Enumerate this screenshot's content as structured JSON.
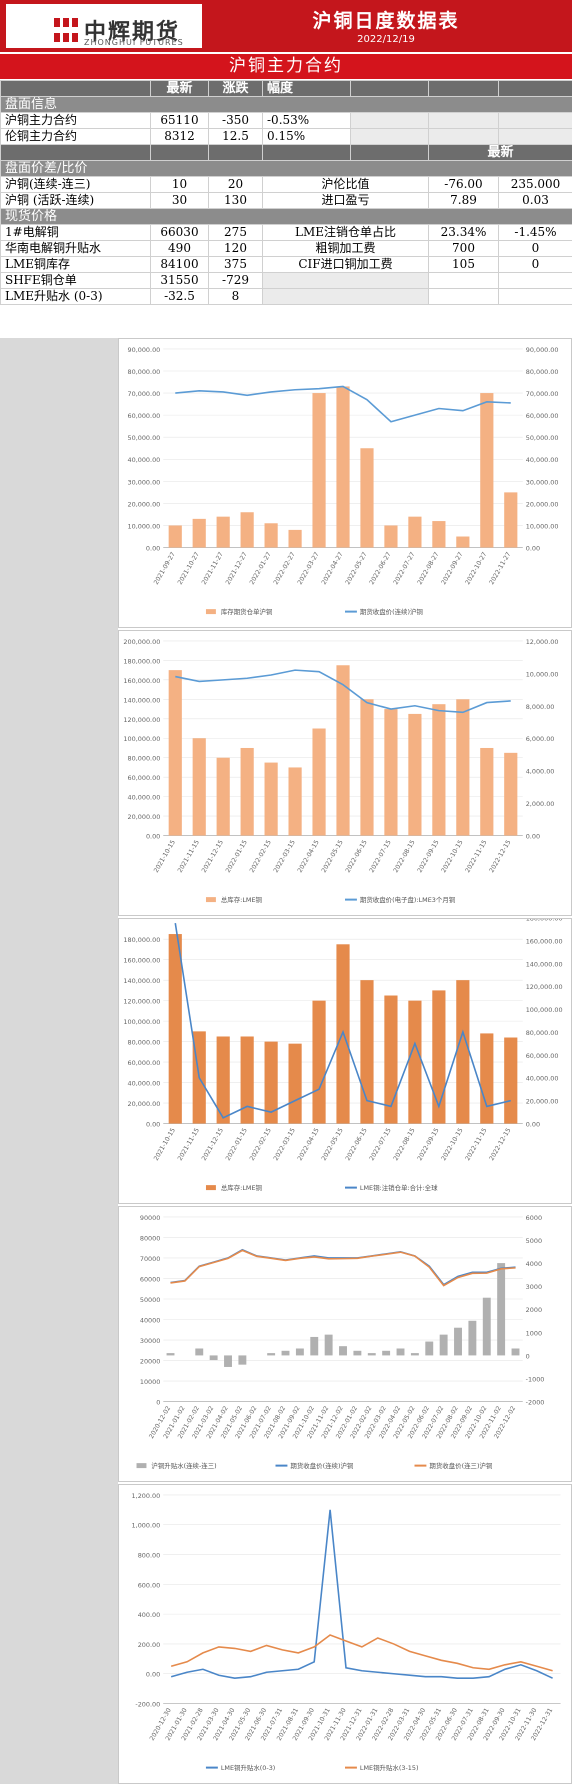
{
  "header": {
    "logo_cn": "中辉期货",
    "logo_en": "ZHONGHUI FUTURES",
    "title": "沪铜日度数据表",
    "date": "2022/12/19",
    "brand_color": "#c4161c"
  },
  "section_main": "沪铜主力合约",
  "table1": {
    "headers": [
      "最新",
      "涨跌",
      "幅度"
    ],
    "group": "盘面信息",
    "rows": [
      {
        "name": "沪铜主力合约",
        "latest": "65110",
        "change": "-350",
        "pct": "-0.53%"
      },
      {
        "name": "伦铜主力合约",
        "latest": "8312",
        "change": "12.5",
        "pct": "0.15%"
      }
    ],
    "right_header": "最新"
  },
  "table2": {
    "group": "盘面价差/比价",
    "rows": [
      {
        "name": "沪铜(连续-连三)",
        "latest": "10",
        "change": "20",
        "rname": "沪伦比值",
        "r1": "-76.00",
        "r2": "235.000"
      },
      {
        "name": "沪铜 (活跃-连续)",
        "latest": "30",
        "change": "130",
        "rname": "进口盈亏",
        "r1": "7.89",
        "r2": "0.03"
      }
    ]
  },
  "table3": {
    "group": "现货价格",
    "rows": [
      {
        "name": "1#电解铜",
        "latest": "66030",
        "change": "275",
        "rname": "LME注销仓单占比",
        "r1": "23.34%",
        "r2": "-1.45%"
      },
      {
        "name": "华南电解铜升贴水",
        "latest": "490",
        "change": "120",
        "rname": "粗铜加工费",
        "r1": "700",
        "r2": "0"
      },
      {
        "name": "LME铜库存",
        "latest": "84100",
        "change": "375",
        "rname": "CIF进口铜加工费",
        "r1": "105",
        "r2": "0"
      },
      {
        "name": "SHFE铜仓单",
        "latest": "31550",
        "change": "-729",
        "rname": "",
        "r1": "",
        "r2": ""
      },
      {
        "name": "LME升贴水 (0-3)",
        "latest": "-32.5",
        "change": "8",
        "rname": "",
        "r1": "",
        "r2": ""
      }
    ]
  },
  "chart_data": [
    {
      "type": "bar+line",
      "x": [
        "2021-09-27",
        "2021-10-27",
        "2021-11-27",
        "2021-12-27",
        "2022-01-27",
        "2022-02-27",
        "2022-03-27",
        "2022-04-27",
        "2022-05-27",
        "2022-06-27",
        "2022-07-27",
        "2022-08-27",
        "2022-09-27",
        "2022-10-27",
        "2022-11-27"
      ],
      "yticks_left": [
        "0.00",
        "10,000.00",
        "20,000.00",
        "30,000.00",
        "40,000.00",
        "50,000.00",
        "60,000.00",
        "70,000.00",
        "80,000.00",
        "90,000.00"
      ],
      "yticks_right": [
        "0.00",
        "10,000.00",
        "20,000.00",
        "30,000.00",
        "40,000.00",
        "50,000.00",
        "60,000.00",
        "70,000.00",
        "80,000.00",
        "90,000.00"
      ],
      "ylim": [
        0,
        90000
      ],
      "y2lim": [
        0,
        90000
      ],
      "series": [
        {
          "name": "库存期货仓单沪铜",
          "kind": "bar",
          "axis": "left",
          "color": "#f4b183",
          "values": [
            10000,
            13000,
            14000,
            16000,
            11000,
            8000,
            70000,
            73000,
            45000,
            10000,
            14000,
            12000,
            5000,
            70000,
            25000
          ]
        },
        {
          "name": "期货收盘价(连续)沪铜",
          "kind": "line",
          "axis": "left",
          "color": "#5b9bd5",
          "values": [
            70000,
            71000,
            70500,
            69000,
            70500,
            71500,
            72000,
            73000,
            67000,
            57000,
            60000,
            63000,
            62000,
            66000,
            65500
          ]
        }
      ]
    },
    {
      "type": "bar+line",
      "x": [
        "2021-10-15",
        "2021-11-15",
        "2021-12-15",
        "2022-01-15",
        "2022-02-15",
        "2022-03-15",
        "2022-04-15",
        "2022-05-15",
        "2022-06-15",
        "2022-07-15",
        "2022-08-15",
        "2022-09-15",
        "2022-10-15",
        "2022-11-15",
        "2022-12-15"
      ],
      "yticks_left": [
        "0.00",
        "20,000.00",
        "40,000.00",
        "60,000.00",
        "80,000.00",
        "100,000.00",
        "120,000.00",
        "140,000.00",
        "160,000.00",
        "180,000.00",
        "200,000.00"
      ],
      "yticks_right": [
        "0.00",
        "2,000.00",
        "4,000.00",
        "6,000.00",
        "8,000.00",
        "10,000.00",
        "12,000.00"
      ],
      "ylim": [
        0,
        200000
      ],
      "y2lim": [
        0,
        12000
      ],
      "series": [
        {
          "name": "总库存:LME铜",
          "kind": "bar",
          "axis": "left",
          "color": "#f4b183",
          "values": [
            170000,
            100000,
            80000,
            90000,
            75000,
            70000,
            110000,
            175000,
            140000,
            130000,
            125000,
            135000,
            140000,
            90000,
            85000
          ]
        },
        {
          "name": "期货收盘价(电子盘):LME3个月铜",
          "kind": "line",
          "axis": "right",
          "color": "#5b9bd5",
          "values": [
            9800,
            9500,
            9600,
            9700,
            9900,
            10200,
            10100,
            9300,
            8200,
            7800,
            8000,
            7700,
            7600,
            8200,
            8300
          ]
        }
      ]
    },
    {
      "type": "bar+line",
      "x": [
        "2021-10-15",
        "2021-11-15",
        "2021-12-15",
        "2022-01-15",
        "2022-02-15",
        "2022-03-15",
        "2022-04-15",
        "2022-05-15",
        "2022-06-15",
        "2022-07-15",
        "2022-08-15",
        "2022-09-15",
        "2022-10-15",
        "2022-11-15",
        "2022-12-15"
      ],
      "yticks_left": [
        "0.00",
        "20,000.00",
        "40,000.00",
        "60,000.00",
        "80,000.00",
        "100,000.00",
        "120,000.00",
        "140,000.00",
        "160,000.00",
        "180,000.00"
      ],
      "yticks_right": [
        "0.00",
        "20,000.00",
        "40,000.00",
        "60,000.00",
        "80,000.00",
        "100,000.00",
        "120,000.00",
        "140,000.00",
        "160,000.00",
        "180,000.00"
      ],
      "ylim": [
        0,
        190000
      ],
      "y2lim": [
        0,
        170000
      ],
      "series": [
        {
          "name": "总库存:LME铜",
          "kind": "bar",
          "axis": "left",
          "color": "#e58a4b",
          "values": [
            185000,
            90000,
            85000,
            85000,
            80000,
            78000,
            120000,
            175000,
            140000,
            125000,
            120000,
            130000,
            140000,
            88000,
            84000
          ]
        },
        {
          "name": "LME铜:注销仓单:合计:全球",
          "kind": "line",
          "axis": "right",
          "color": "#4a86c8",
          "values": [
            175000,
            40000,
            5000,
            15000,
            10000,
            20000,
            30000,
            80000,
            20000,
            15000,
            70000,
            15000,
            80000,
            15000,
            20000
          ]
        }
      ]
    },
    {
      "type": "bar+line",
      "x": [
        "2020-12-02",
        "2021-01-02",
        "2021-02-02",
        "2021-03-02",
        "2021-04-02",
        "2021-05-02",
        "2021-06-02",
        "2021-07-02",
        "2021-08-02",
        "2021-09-02",
        "2021-10-02",
        "2021-11-02",
        "2021-12-02",
        "2022-01-02",
        "2022-02-02",
        "2022-03-02",
        "2022-04-02",
        "2022-05-02",
        "2022-06-02",
        "2022-07-02",
        "2022-08-02",
        "2022-09-02",
        "2022-10-02",
        "2022-11-02",
        "2022-12-02"
      ],
      "yticks_left": [
        "0",
        "10000",
        "20000",
        "30000",
        "40000",
        "50000",
        "60000",
        "70000",
        "80000",
        "90000"
      ],
      "yticks_right": [
        "-2000",
        "-1000",
        "0",
        "1000",
        "2000",
        "3000",
        "4000",
        "5000",
        "6000"
      ],
      "ylim": [
        0,
        90000
      ],
      "y2lim": [
        -2000,
        6000
      ],
      "series": [
        {
          "name": "沪铜升贴水(连续-连三)",
          "kind": "bar",
          "axis": "right",
          "color": "#b0b0b0",
          "values": [
            100,
            0,
            300,
            -200,
            -500,
            -400,
            0,
            100,
            200,
            300,
            800,
            900,
            400,
            200,
            100,
            200,
            300,
            100,
            600,
            900,
            1200,
            1500,
            2500,
            4000,
            300
          ]
        },
        {
          "name": "期货收盘价(连续)沪铜",
          "kind": "line",
          "axis": "left",
          "color": "#4a86c8",
          "values": [
            58000,
            59000,
            66000,
            68000,
            70000,
            74000,
            71000,
            70000,
            69000,
            70000,
            71000,
            70000,
            70000,
            70000,
            71000,
            72000,
            73000,
            71000,
            66000,
            57000,
            61000,
            63000,
            63000,
            65000,
            65500
          ]
        },
        {
          "name": "期货收盘价(连三)沪铜",
          "kind": "line",
          "axis": "left",
          "color": "#e58a4b",
          "values": [
            57800,
            58800,
            65800,
            67800,
            69800,
            73700,
            70800,
            69800,
            68800,
            69800,
            70500,
            69600,
            69700,
            69800,
            70900,
            71800,
            72800,
            70900,
            65500,
            56500,
            60500,
            62500,
            62600,
            64700,
            65200
          ]
        }
      ]
    },
    {
      "type": "line",
      "x": [
        "2020-12-30",
        "2021-01-30",
        "2021-02-28",
        "2021-03-30",
        "2021-04-30",
        "2021-05-30",
        "2021-06-30",
        "2021-07-31",
        "2021-08-31",
        "2021-09-30",
        "2021-10-31",
        "2021-11-30",
        "2021-12-31",
        "2022-01-31",
        "2022-02-28",
        "2022-03-31",
        "2022-04-30",
        "2022-05-31",
        "2022-06-30",
        "2022-07-31",
        "2022-08-31",
        "2022-09-30",
        "2022-10-31",
        "2022-11-30",
        "2022-12-31"
      ],
      "yticks_left": [
        "-200.00",
        "0.00",
        "200.00",
        "400.00",
        "600.00",
        "800.00",
        "1,000.00",
        "1,200.00"
      ],
      "ylim": [
        -200,
        1200
      ],
      "series": [
        {
          "name": "LME铜升贴水(0-3)",
          "kind": "line",
          "axis": "left",
          "color": "#4a86c8",
          "values": [
            -20,
            10,
            30,
            -10,
            -30,
            -20,
            10,
            20,
            30,
            80,
            1100,
            40,
            20,
            10,
            0,
            -10,
            -20,
            -20,
            -30,
            -30,
            -20,
            30,
            60,
            20,
            -30
          ]
        },
        {
          "name": "LME铜升贴水(3-15)",
          "kind": "line",
          "axis": "left",
          "color": "#e58a4b",
          "values": [
            50,
            80,
            140,
            180,
            170,
            150,
            190,
            160,
            140,
            180,
            260,
            220,
            180,
            240,
            200,
            150,
            120,
            90,
            70,
            40,
            30,
            60,
            80,
            50,
            20
          ]
        }
      ]
    }
  ]
}
